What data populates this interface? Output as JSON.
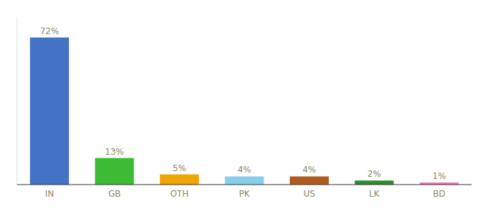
{
  "chart_data": {
    "type": "bar",
    "categories": [
      "IN",
      "GB",
      "OTH",
      "PK",
      "US",
      "LK",
      "BD"
    ],
    "values": [
      72,
      13,
      5,
      4,
      4,
      2,
      1
    ],
    "value_labels": [
      "72%",
      "13%",
      "5%",
      "4%",
      "4%",
      "2%",
      "1%"
    ],
    "colors": [
      "#4472c4",
      "#3dbb35",
      "#f0a500",
      "#87ceeb",
      "#b05a20",
      "#2e8b2e",
      "#ff69b4"
    ],
    "ylim": [
      0,
      82
    ],
    "data_labels": true,
    "tick_labels": "x",
    "grid": false
  }
}
